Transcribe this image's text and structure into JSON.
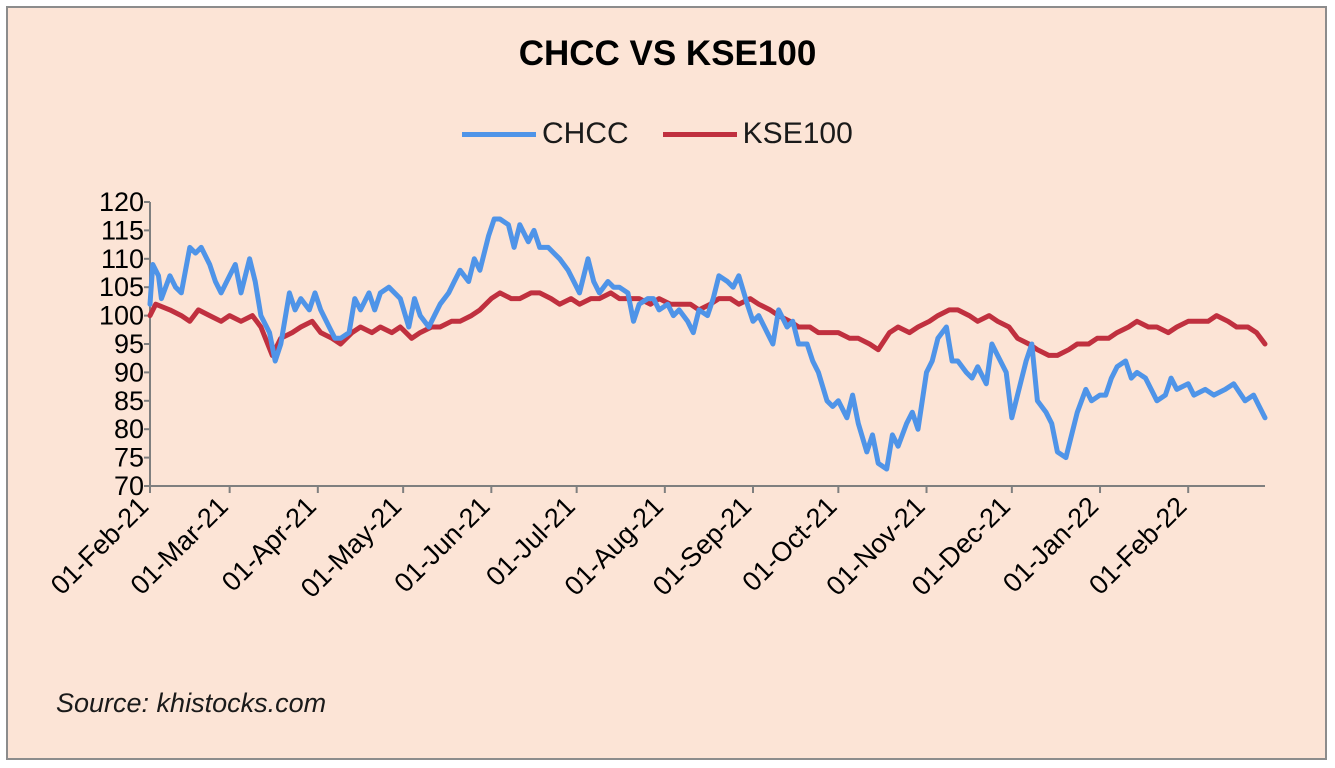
{
  "chart_data": {
    "type": "line",
    "title": "CHCC VS KSE100",
    "source": "Source: khistocks.com",
    "y_ticks": [
      120,
      115,
      110,
      105,
      100,
      95,
      90,
      85,
      80,
      75,
      70
    ],
    "ylim": [
      70,
      120
    ],
    "x_ticks": [
      "01-Feb-21",
      "01-Mar-21",
      "01-Apr-21",
      "01-May-21",
      "01-Jun-21",
      "01-Jul-21",
      "01-Aug-21",
      "01-Sep-21",
      "01-Oct-21",
      "01-Nov-21",
      "01-Dec-21",
      "01-Jan-22",
      "01-Feb-22"
    ],
    "xlim": [
      "2021-02-01",
      "2022-02-28"
    ],
    "grid": false,
    "legend_position": "top",
    "series": [
      {
        "name": "CHCC",
        "color": "#4f94e8",
        "points": [
          [
            "2021-02-01",
            102
          ],
          [
            "2021-02-02",
            109
          ],
          [
            "2021-02-04",
            107
          ],
          [
            "2021-02-05",
            103
          ],
          [
            "2021-02-08",
            107
          ],
          [
            "2021-02-10",
            105
          ],
          [
            "2021-02-12",
            104
          ],
          [
            "2021-02-15",
            112
          ],
          [
            "2021-02-17",
            111
          ],
          [
            "2021-02-19",
            112
          ],
          [
            "2021-02-22",
            109
          ],
          [
            "2021-02-24",
            106
          ],
          [
            "2021-02-26",
            104
          ],
          [
            "2021-03-01",
            107
          ],
          [
            "2021-03-03",
            109
          ],
          [
            "2021-03-05",
            104
          ],
          [
            "2021-03-08",
            110
          ],
          [
            "2021-03-10",
            106
          ],
          [
            "2021-03-12",
            100
          ],
          [
            "2021-03-15",
            97
          ],
          [
            "2021-03-17",
            92
          ],
          [
            "2021-03-19",
            95
          ],
          [
            "2021-03-22",
            104
          ],
          [
            "2021-03-24",
            101
          ],
          [
            "2021-03-26",
            103
          ],
          [
            "2021-03-29",
            101
          ],
          [
            "2021-03-31",
            104
          ],
          [
            "2021-04-02",
            101
          ],
          [
            "2021-04-05",
            98
          ],
          [
            "2021-04-07",
            96
          ],
          [
            "2021-04-09",
            96
          ],
          [
            "2021-04-12",
            97
          ],
          [
            "2021-04-14",
            103
          ],
          [
            "2021-04-16",
            101
          ],
          [
            "2021-04-19",
            104
          ],
          [
            "2021-04-21",
            101
          ],
          [
            "2021-04-23",
            104
          ],
          [
            "2021-04-26",
            105
          ],
          [
            "2021-04-28",
            104
          ],
          [
            "2021-04-30",
            103
          ],
          [
            "2021-05-03",
            98
          ],
          [
            "2021-05-05",
            103
          ],
          [
            "2021-05-07",
            100
          ],
          [
            "2021-05-10",
            98
          ],
          [
            "2021-05-12",
            100
          ],
          [
            "2021-05-14",
            102
          ],
          [
            "2021-05-17",
            104
          ],
          [
            "2021-05-19",
            106
          ],
          [
            "2021-05-21",
            108
          ],
          [
            "2021-05-24",
            106
          ],
          [
            "2021-05-26",
            110
          ],
          [
            "2021-05-28",
            108
          ],
          [
            "2021-05-31",
            114
          ],
          [
            "2021-06-02",
            117
          ],
          [
            "2021-06-04",
            117
          ],
          [
            "2021-06-07",
            116
          ],
          [
            "2021-06-09",
            112
          ],
          [
            "2021-06-11",
            116
          ],
          [
            "2021-06-14",
            113
          ],
          [
            "2021-06-16",
            115
          ],
          [
            "2021-06-18",
            112
          ],
          [
            "2021-06-21",
            112
          ],
          [
            "2021-06-23",
            111
          ],
          [
            "2021-06-25",
            110
          ],
          [
            "2021-06-28",
            108
          ],
          [
            "2021-06-30",
            106
          ],
          [
            "2021-07-02",
            104
          ],
          [
            "2021-07-05",
            110
          ],
          [
            "2021-07-07",
            106
          ],
          [
            "2021-07-09",
            104
          ],
          [
            "2021-07-12",
            106
          ],
          [
            "2021-07-14",
            105
          ],
          [
            "2021-07-16",
            105
          ],
          [
            "2021-07-19",
            104
          ],
          [
            "2021-07-21",
            99
          ],
          [
            "2021-07-23",
            102
          ],
          [
            "2021-07-26",
            103
          ],
          [
            "2021-07-28",
            103
          ],
          [
            "2021-07-30",
            101
          ],
          [
            "2021-08-02",
            102
          ],
          [
            "2021-08-04",
            100
          ],
          [
            "2021-08-06",
            101
          ],
          [
            "2021-08-09",
            99
          ],
          [
            "2021-08-11",
            97
          ],
          [
            "2021-08-13",
            101
          ],
          [
            "2021-08-16",
            100
          ],
          [
            "2021-08-18",
            103
          ],
          [
            "2021-08-20",
            107
          ],
          [
            "2021-08-23",
            106
          ],
          [
            "2021-08-25",
            105
          ],
          [
            "2021-08-27",
            107
          ],
          [
            "2021-08-30",
            102
          ],
          [
            "2021-09-01",
            99
          ],
          [
            "2021-09-03",
            100
          ],
          [
            "2021-09-06",
            97
          ],
          [
            "2021-09-08",
            95
          ],
          [
            "2021-09-10",
            101
          ],
          [
            "2021-09-13",
            98
          ],
          [
            "2021-09-15",
            99
          ],
          [
            "2021-09-17",
            95
          ],
          [
            "2021-09-20",
            95
          ],
          [
            "2021-09-22",
            92
          ],
          [
            "2021-09-24",
            90
          ],
          [
            "2021-09-27",
            85
          ],
          [
            "2021-09-29",
            84
          ],
          [
            "2021-10-01",
            85
          ],
          [
            "2021-10-04",
            82
          ],
          [
            "2021-10-06",
            86
          ],
          [
            "2021-10-08",
            81
          ],
          [
            "2021-10-11",
            76
          ],
          [
            "2021-10-13",
            79
          ],
          [
            "2021-10-15",
            74
          ],
          [
            "2021-10-18",
            73
          ],
          [
            "2021-10-20",
            79
          ],
          [
            "2021-10-22",
            77
          ],
          [
            "2021-10-25",
            81
          ],
          [
            "2021-10-27",
            83
          ],
          [
            "2021-10-29",
            80
          ],
          [
            "2021-11-01",
            90
          ],
          [
            "2021-11-03",
            92
          ],
          [
            "2021-11-05",
            96
          ],
          [
            "2021-11-08",
            98
          ],
          [
            "2021-11-10",
            92
          ],
          [
            "2021-11-12",
            92
          ],
          [
            "2021-11-15",
            90
          ],
          [
            "2021-11-17",
            89
          ],
          [
            "2021-11-19",
            91
          ],
          [
            "2021-11-22",
            88
          ],
          [
            "2021-11-24",
            95
          ],
          [
            "2021-11-26",
            93
          ],
          [
            "2021-11-29",
            90
          ],
          [
            "2021-12-01",
            82
          ],
          [
            "2021-12-03",
            86
          ],
          [
            "2021-12-06",
            92
          ],
          [
            "2021-12-08",
            95
          ],
          [
            "2021-12-10",
            85
          ],
          [
            "2021-12-13",
            83
          ],
          [
            "2021-12-15",
            81
          ],
          [
            "2021-12-17",
            76
          ],
          [
            "2021-12-20",
            75
          ],
          [
            "2021-12-22",
            79
          ],
          [
            "2021-12-24",
            83
          ],
          [
            "2021-12-27",
            87
          ],
          [
            "2021-12-29",
            85
          ],
          [
            "2022-01-01",
            86
          ],
          [
            "2022-01-03",
            86
          ],
          [
            "2022-01-05",
            89
          ],
          [
            "2022-01-07",
            91
          ],
          [
            "2022-01-10",
            92
          ],
          [
            "2022-01-12",
            89
          ],
          [
            "2022-01-14",
            90
          ],
          [
            "2022-01-17",
            89
          ],
          [
            "2022-01-19",
            87
          ],
          [
            "2022-01-21",
            85
          ],
          [
            "2022-01-24",
            86
          ],
          [
            "2022-01-26",
            89
          ],
          [
            "2022-01-28",
            87
          ],
          [
            "2022-02-01",
            88
          ],
          [
            "2022-02-03",
            86
          ],
          [
            "2022-02-07",
            87
          ],
          [
            "2022-02-10",
            86
          ],
          [
            "2022-02-14",
            87
          ],
          [
            "2022-02-17",
            88
          ],
          [
            "2022-02-21",
            85
          ],
          [
            "2022-02-24",
            86
          ],
          [
            "2022-02-26",
            84
          ],
          [
            "2022-02-28",
            82
          ]
        ]
      },
      {
        "name": "KSE100",
        "color": "#c0303f",
        "points": [
          [
            "2021-02-01",
            100
          ],
          [
            "2021-02-03",
            102
          ],
          [
            "2021-02-08",
            101
          ],
          [
            "2021-02-12",
            100
          ],
          [
            "2021-02-15",
            99
          ],
          [
            "2021-02-18",
            101
          ],
          [
            "2021-02-22",
            100
          ],
          [
            "2021-02-26",
            99
          ],
          [
            "2021-03-01",
            100
          ],
          [
            "2021-03-05",
            99
          ],
          [
            "2021-03-09",
            100
          ],
          [
            "2021-03-12",
            98
          ],
          [
            "2021-03-16",
            93
          ],
          [
            "2021-03-19",
            96
          ],
          [
            "2021-03-23",
            97
          ],
          [
            "2021-03-26",
            98
          ],
          [
            "2021-03-30",
            99
          ],
          [
            "2021-04-02",
            97
          ],
          [
            "2021-04-06",
            96
          ],
          [
            "2021-04-09",
            95
          ],
          [
            "2021-04-13",
            97
          ],
          [
            "2021-04-16",
            98
          ],
          [
            "2021-04-20",
            97
          ],
          [
            "2021-04-23",
            98
          ],
          [
            "2021-04-27",
            97
          ],
          [
            "2021-04-30",
            98
          ],
          [
            "2021-05-04",
            96
          ],
          [
            "2021-05-07",
            97
          ],
          [
            "2021-05-11",
            98
          ],
          [
            "2021-05-14",
            98
          ],
          [
            "2021-05-18",
            99
          ],
          [
            "2021-05-21",
            99
          ],
          [
            "2021-05-25",
            100
          ],
          [
            "2021-05-28",
            101
          ],
          [
            "2021-06-01",
            103
          ],
          [
            "2021-06-04",
            104
          ],
          [
            "2021-06-08",
            103
          ],
          [
            "2021-06-11",
            103
          ],
          [
            "2021-06-15",
            104
          ],
          [
            "2021-06-18",
            104
          ],
          [
            "2021-06-22",
            103
          ],
          [
            "2021-06-25",
            102
          ],
          [
            "2021-06-29",
            103
          ],
          [
            "2021-07-02",
            102
          ],
          [
            "2021-07-06",
            103
          ],
          [
            "2021-07-09",
            103
          ],
          [
            "2021-07-13",
            104
          ],
          [
            "2021-07-16",
            103
          ],
          [
            "2021-07-20",
            103
          ],
          [
            "2021-07-23",
            103
          ],
          [
            "2021-07-27",
            102
          ],
          [
            "2021-07-30",
            103
          ],
          [
            "2021-08-03",
            102
          ],
          [
            "2021-08-06",
            102
          ],
          [
            "2021-08-10",
            102
          ],
          [
            "2021-08-13",
            101
          ],
          [
            "2021-08-17",
            102
          ],
          [
            "2021-08-20",
            103
          ],
          [
            "2021-08-24",
            103
          ],
          [
            "2021-08-27",
            102
          ],
          [
            "2021-08-31",
            103
          ],
          [
            "2021-09-03",
            102
          ],
          [
            "2021-09-07",
            101
          ],
          [
            "2021-09-10",
            100
          ],
          [
            "2021-09-14",
            99
          ],
          [
            "2021-09-17",
            98
          ],
          [
            "2021-09-21",
            98
          ],
          [
            "2021-09-24",
            97
          ],
          [
            "2021-09-28",
            97
          ],
          [
            "2021-10-01",
            97
          ],
          [
            "2021-10-05",
            96
          ],
          [
            "2021-10-08",
            96
          ],
          [
            "2021-10-12",
            95
          ],
          [
            "2021-10-15",
            94
          ],
          [
            "2021-10-19",
            97
          ],
          [
            "2021-10-22",
            98
          ],
          [
            "2021-10-26",
            97
          ],
          [
            "2021-10-29",
            98
          ],
          [
            "2021-11-02",
            99
          ],
          [
            "2021-11-05",
            100
          ],
          [
            "2021-11-09",
            101
          ],
          [
            "2021-11-12",
            101
          ],
          [
            "2021-11-16",
            100
          ],
          [
            "2021-11-19",
            99
          ],
          [
            "2021-11-23",
            100
          ],
          [
            "2021-11-26",
            99
          ],
          [
            "2021-11-30",
            98
          ],
          [
            "2021-12-03",
            96
          ],
          [
            "2021-12-07",
            95
          ],
          [
            "2021-12-10",
            94
          ],
          [
            "2021-12-14",
            93
          ],
          [
            "2021-12-17",
            93
          ],
          [
            "2021-12-21",
            94
          ],
          [
            "2021-12-24",
            95
          ],
          [
            "2021-12-28",
            95
          ],
          [
            "2021-12-31",
            96
          ],
          [
            "2022-01-04",
            96
          ],
          [
            "2022-01-07",
            97
          ],
          [
            "2022-01-11",
            98
          ],
          [
            "2022-01-14",
            99
          ],
          [
            "2022-01-18",
            98
          ],
          [
            "2022-01-21",
            98
          ],
          [
            "2022-01-25",
            97
          ],
          [
            "2022-01-28",
            98
          ],
          [
            "2022-02-01",
            99
          ],
          [
            "2022-02-04",
            99
          ],
          [
            "2022-02-08",
            99
          ],
          [
            "2022-02-11",
            100
          ],
          [
            "2022-02-15",
            99
          ],
          [
            "2022-02-18",
            98
          ],
          [
            "2022-02-22",
            98
          ],
          [
            "2022-02-25",
            97
          ],
          [
            "2022-02-28",
            95
          ]
        ]
      }
    ]
  }
}
